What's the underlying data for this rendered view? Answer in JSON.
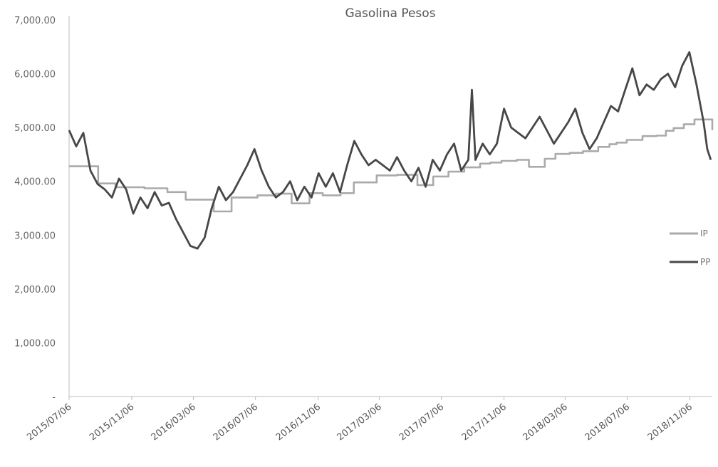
{
  "chart_data": {
    "type": "line",
    "title": "Gasolina Pesos",
    "xlabel": "",
    "ylabel": "",
    "ylim": [
      0,
      7000
    ],
    "y_ticks": [
      {
        "value": 0,
        "label": "-"
      },
      {
        "value": 1000,
        "label": "1,000.00"
      },
      {
        "value": 2000,
        "label": "2,000.00"
      },
      {
        "value": 3000,
        "label": "3,000.00"
      },
      {
        "value": 4000,
        "label": "4,000.00"
      },
      {
        "value": 5000,
        "label": "5,000.00"
      },
      {
        "value": 6000,
        "label": "6,000.00"
      },
      {
        "value": 7000,
        "label": "7,000.00"
      }
    ],
    "x_range": [
      "2015-07-06",
      "2018-12-20"
    ],
    "x_ticks": [
      "2015/07/06",
      "2015/11/06",
      "2016/03/06",
      "2016/07/06",
      "2016/11/06",
      "2017/03/06",
      "2017/07/06",
      "2017/11/06",
      "2018/03/06",
      "2018/07/06",
      "2018/11/06"
    ],
    "grid": false,
    "legend_position": "right",
    "series": [
      {
        "name": "IP",
        "color": "#aaaaaa",
        "step": true,
        "x": [
          "2015-07-06",
          "2015-09-01",
          "2015-10-05",
          "2015-12-01",
          "2016-01-15",
          "2016-02-20",
          "2016-04-15",
          "2016-05-20",
          "2016-07-10",
          "2016-08-15",
          "2016-09-15",
          "2016-10-20",
          "2016-11-15",
          "2016-12-20",
          "2017-01-15",
          "2017-03-01",
          "2017-04-10",
          "2017-05-20",
          "2017-06-20",
          "2017-07-20",
          "2017-08-20",
          "2017-09-20",
          "2017-10-10",
          "2017-11-01",
          "2017-12-01",
          "2017-12-25",
          "2018-01-25",
          "2018-02-15",
          "2018-03-15",
          "2018-04-10",
          "2018-05-10",
          "2018-06-01",
          "2018-06-15",
          "2018-07-05",
          "2018-08-05",
          "2018-09-01",
          "2018-09-20",
          "2018-10-05",
          "2018-10-25",
          "2018-11-15",
          "2018-12-20"
        ],
        "y": [
          4280,
          3960,
          3890,
          3870,
          3800,
          3660,
          3440,
          3700,
          3740,
          3770,
          3590,
          3780,
          3740,
          3780,
          3980,
          4110,
          4120,
          3930,
          4090,
          4180,
          4260,
          4330,
          4350,
          4380,
          4400,
          4270,
          4420,
          4510,
          4530,
          4560,
          4640,
          4690,
          4720,
          4770,
          4840,
          4850,
          4940,
          4990,
          5060,
          5150,
          4950
        ]
      },
      {
        "name": "PP",
        "color": "#474747",
        "step": false,
        "x": [
          "2015-07-06",
          "2015-07-20",
          "2015-08-03",
          "2015-08-17",
          "2015-08-31",
          "2015-09-14",
          "2015-09-28",
          "2015-10-12",
          "2015-10-26",
          "2015-11-09",
          "2015-11-23",
          "2015-12-07",
          "2015-12-21",
          "2016-01-04",
          "2016-01-18",
          "2016-02-01",
          "2016-02-15",
          "2016-02-29",
          "2016-03-14",
          "2016-03-28",
          "2016-04-11",
          "2016-04-25",
          "2016-05-09",
          "2016-05-23",
          "2016-06-06",
          "2016-06-20",
          "2016-07-04",
          "2016-07-18",
          "2016-08-01",
          "2016-08-15",
          "2016-08-29",
          "2016-09-12",
          "2016-09-26",
          "2016-10-10",
          "2016-10-24",
          "2016-11-07",
          "2016-11-21",
          "2016-12-05",
          "2016-12-19",
          "2017-01-02",
          "2017-01-16",
          "2017-01-30",
          "2017-02-13",
          "2017-02-27",
          "2017-03-13",
          "2017-03-27",
          "2017-04-10",
          "2017-04-24",
          "2017-05-08",
          "2017-05-22",
          "2017-06-05",
          "2017-06-19",
          "2017-07-03",
          "2017-07-17",
          "2017-07-31",
          "2017-08-14",
          "2017-08-28",
          "2017-09-04",
          "2017-09-11",
          "2017-09-25",
          "2017-10-09",
          "2017-10-23",
          "2017-11-06",
          "2017-11-20",
          "2017-12-04",
          "2017-12-18",
          "2018-01-01",
          "2018-01-15",
          "2018-01-29",
          "2018-02-12",
          "2018-02-26",
          "2018-03-12",
          "2018-03-26",
          "2018-04-09",
          "2018-04-23",
          "2018-05-07",
          "2018-05-21",
          "2018-06-04",
          "2018-06-18",
          "2018-07-02",
          "2018-07-16",
          "2018-07-30",
          "2018-08-13",
          "2018-08-27",
          "2018-09-10",
          "2018-09-24",
          "2018-10-08",
          "2018-10-22",
          "2018-11-05",
          "2018-11-19",
          "2018-12-03",
          "2018-12-10",
          "2018-12-17"
        ],
        "y": [
          4950,
          4650,
          4900,
          4200,
          3950,
          3850,
          3700,
          4050,
          3850,
          3400,
          3700,
          3500,
          3800,
          3550,
          3600,
          3300,
          3050,
          2800,
          2750,
          2950,
          3500,
          3900,
          3650,
          3800,
          4050,
          4300,
          4600,
          4200,
          3900,
          3700,
          3800,
          4000,
          3650,
          3900,
          3700,
          4150,
          3900,
          4150,
          3800,
          4300,
          4750,
          4500,
          4300,
          4400,
          4300,
          4200,
          4450,
          4200,
          4000,
          4250,
          3900,
          4400,
          4200,
          4500,
          4700,
          4200,
          4400,
          5700,
          4400,
          4700,
          4500,
          4700,
          5350,
          5000,
          4900,
          4800,
          5000,
          5200,
          4950,
          4700,
          4900,
          5100,
          5350,
          4900,
          4600,
          4800,
          5100,
          5400,
          5300,
          5700,
          6100,
          5600,
          5800,
          5700,
          5900,
          6000,
          5750,
          6150,
          6400,
          5800,
          5100,
          4600,
          4400
        ]
      }
    ]
  }
}
